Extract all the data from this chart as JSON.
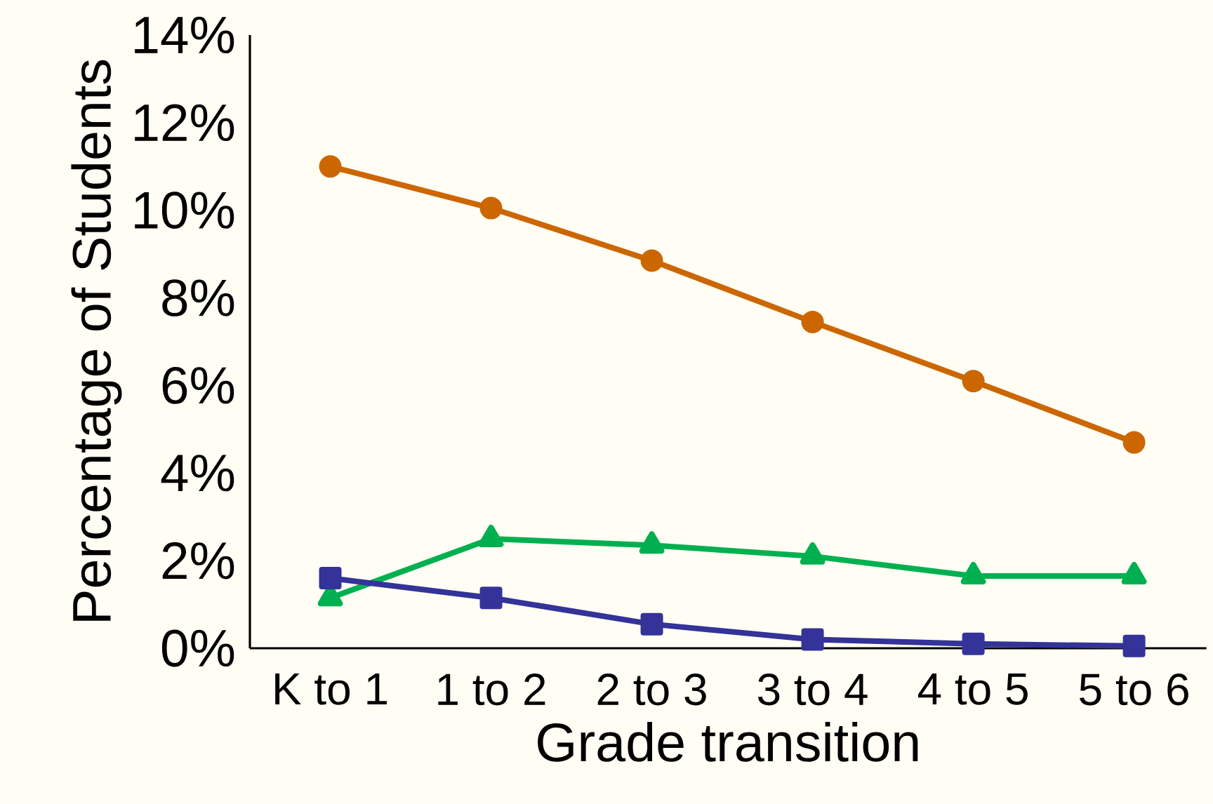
{
  "chart_data": {
    "type": "line",
    "xlabel": "Grade transition",
    "ylabel": "Percentage of Students",
    "categories": [
      "K to 1",
      "1 to 2",
      "2 to 3",
      "3 to 4",
      "4 to 5",
      "5 to 6"
    ],
    "series": [
      {
        "color": "#cc6600",
        "marker": "circle",
        "values": [
          11.0,
          10.05,
          8.85,
          7.45,
          6.1,
          4.7
        ]
      },
      {
        "color": "#00b050",
        "marker": "triangle",
        "values": [
          1.15,
          2.5,
          2.35,
          2.1,
          1.65,
          1.65
        ]
      },
      {
        "color": "#333399",
        "marker": "square",
        "values": [
          1.6,
          1.15,
          0.55,
          0.2,
          0.1,
          0.05
        ]
      }
    ],
    "ylim": [
      0,
      14
    ],
    "yticks": [
      {
        "value": 0,
        "label": "0%"
      },
      {
        "value": 2,
        "label": "2%"
      },
      {
        "value": 4,
        "label": "4%"
      },
      {
        "value": 6,
        "label": "6%"
      },
      {
        "value": 8,
        "label": "8%"
      },
      {
        "value": 10,
        "label": "10%"
      },
      {
        "value": 12,
        "label": "12%"
      },
      {
        "value": 14,
        "label": "14%"
      }
    ],
    "grid": false,
    "line_style": "solid"
  }
}
